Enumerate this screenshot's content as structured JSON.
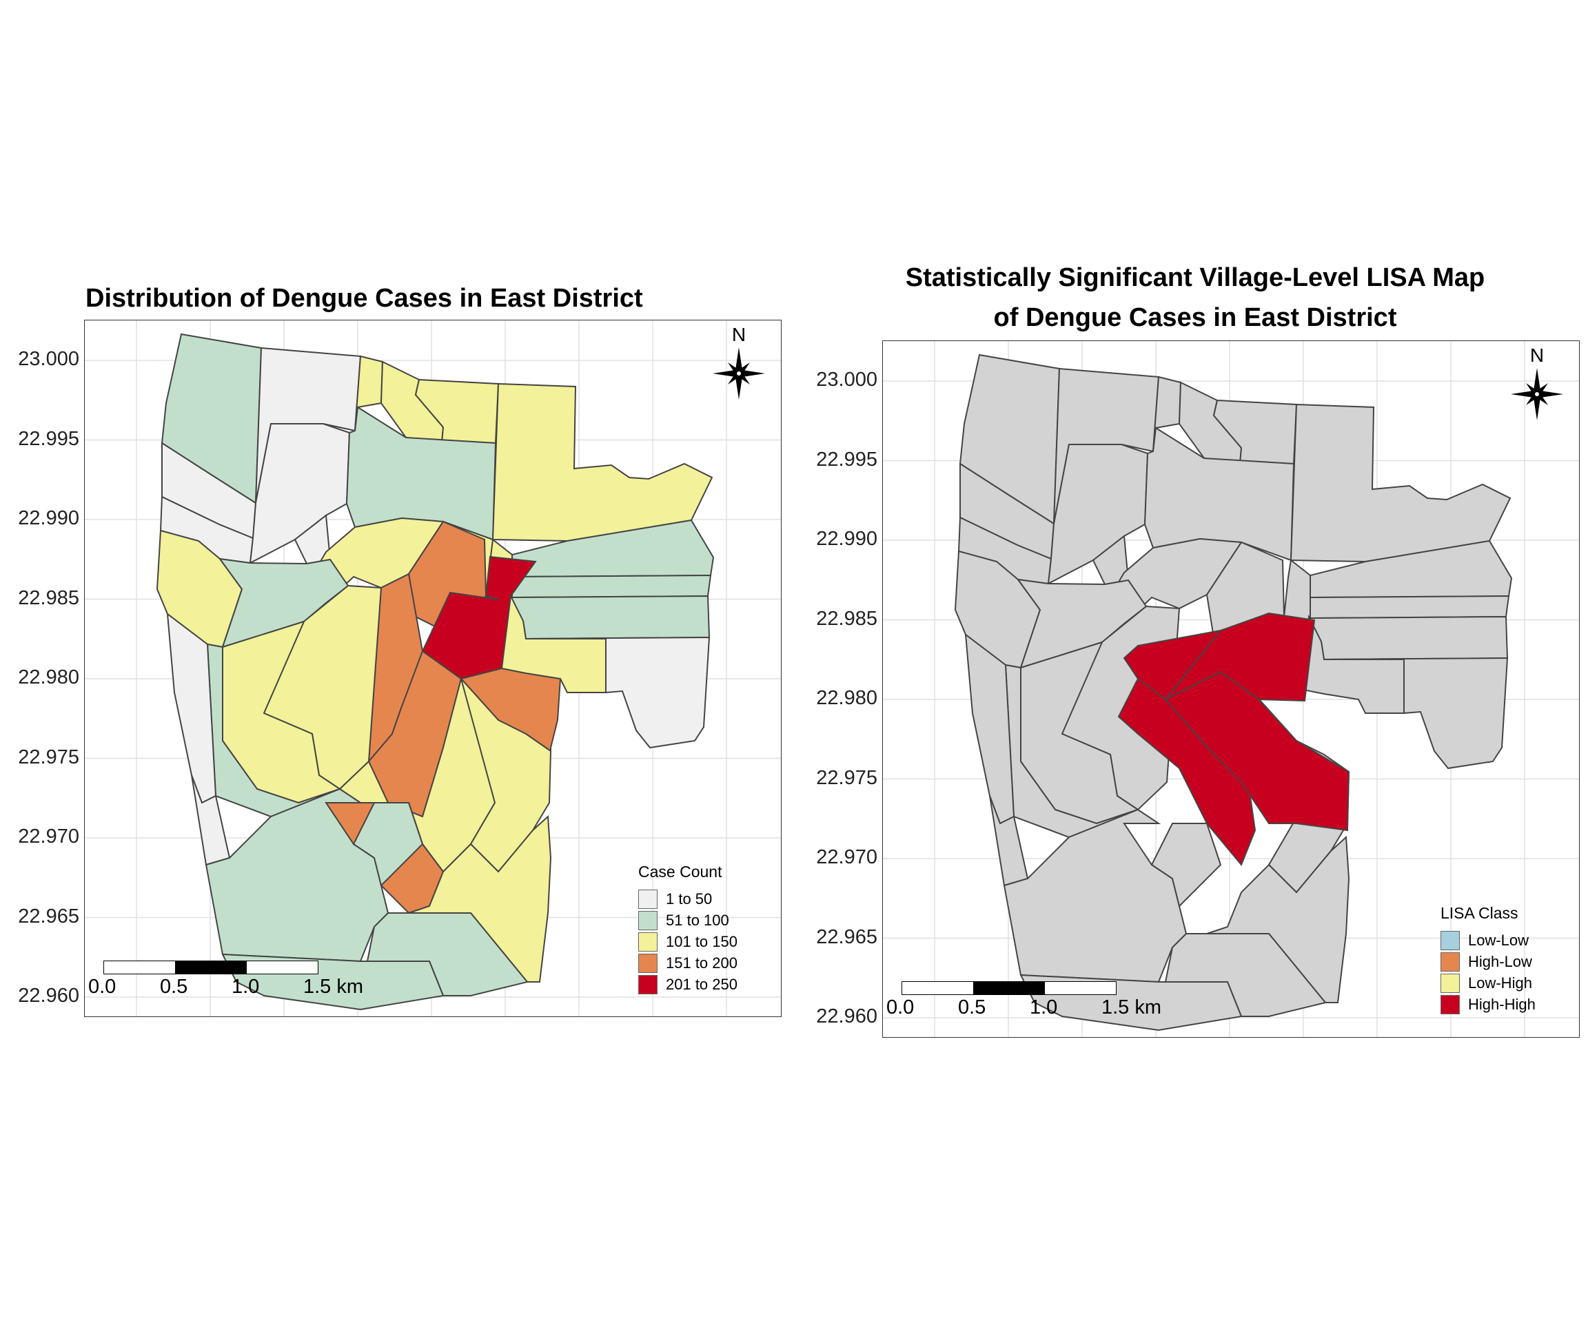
{
  "left_map": {
    "title": "Distribution of Dengue Cases in East District",
    "y_ticks": [
      "23.000",
      "22.995",
      "22.990",
      "22.985",
      "22.980",
      "22.975",
      "22.970",
      "22.965",
      "22.960"
    ],
    "legend": {
      "title": "Case Count",
      "items": [
        {
          "label": "1 to 50",
          "color": "#f0f0f0"
        },
        {
          "label": "51 to 100",
          "color": "#c2dfcc"
        },
        {
          "label": "101 to 150",
          "color": "#f3f199"
        },
        {
          "label": "151 to 200",
          "color": "#e5864f"
        },
        {
          "label": "201 to 250",
          "color": "#c8001f"
        }
      ]
    },
    "scale_labels": [
      "0.0",
      "0.5",
      "1.0",
      "1.5 km"
    ],
    "north_label": "N"
  },
  "right_map": {
    "title_line1": "Statistically Significant Village-Level LISA Map",
    "title_line2": "of Dengue Cases in East District",
    "y_ticks": [
      "23.000",
      "22.995",
      "22.990",
      "22.985",
      "22.980",
      "22.975",
      "22.970",
      "22.965",
      "22.960"
    ],
    "legend": {
      "title": "LISA Class",
      "items": [
        {
          "label": "Low-Low",
          "color": "#a6d0de"
        },
        {
          "label": "High-Low",
          "color": "#e5864f"
        },
        {
          "label": "Low-High",
          "color": "#f3f199"
        },
        {
          "label": "High-High",
          "color": "#c8001f"
        }
      ]
    },
    "scale_labels": [
      "0.0",
      "0.5",
      "1.0",
      "1.5 km"
    ],
    "north_label": "N",
    "base_color": "#d3d3d3",
    "hotspot_color": "#c8001f"
  }
}
